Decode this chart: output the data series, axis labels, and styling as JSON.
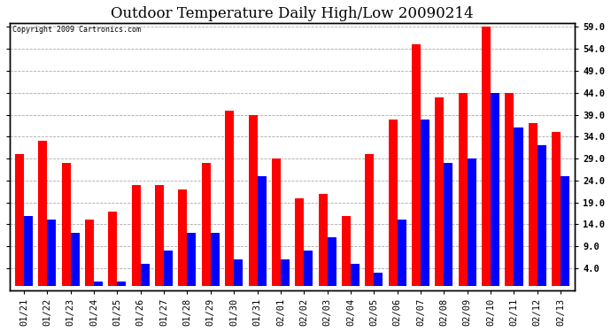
{
  "title": "Outdoor Temperature Daily High/Low 20090214",
  "copyright": "Copyright 2009 Cartronics.com",
  "categories": [
    "01/21",
    "01/22",
    "01/23",
    "01/24",
    "01/25",
    "01/26",
    "01/27",
    "01/28",
    "01/29",
    "01/30",
    "01/31",
    "02/01",
    "02/02",
    "02/03",
    "02/04",
    "02/05",
    "02/06",
    "02/07",
    "02/08",
    "02/09",
    "02/10",
    "02/11",
    "02/12",
    "02/13"
  ],
  "highs": [
    30,
    33,
    28,
    15,
    17,
    23,
    23,
    22,
    28,
    40,
    39,
    29,
    20,
    21,
    16,
    30,
    38,
    55,
    43,
    44,
    59,
    44,
    37,
    35
  ],
  "lows": [
    16,
    15,
    12,
    1,
    1,
    5,
    8,
    12,
    12,
    6,
    25,
    6,
    8,
    11,
    5,
    3,
    15,
    38,
    28,
    29,
    44,
    36,
    32,
    25
  ],
  "high_color": "#FF0000",
  "low_color": "#0000FF",
  "background_color": "#FFFFFF",
  "grid_color": "#AAAAAA",
  "ylim": [
    -1,
    60
  ],
  "yticks": [
    4.0,
    9.0,
    14.0,
    19.0,
    24.0,
    29.0,
    34.0,
    39.0,
    44.0,
    49.0,
    54.0,
    59.0
  ],
  "right_yticks": [
    4.0,
    9.0,
    14.0,
    19.0,
    24.0,
    29.0,
    34.0,
    39.0,
    44.0,
    49.0,
    54.0,
    59.0
  ],
  "bar_width": 0.38,
  "title_fontsize": 12,
  "tick_fontsize": 7.5,
  "figsize": [
    6.9,
    3.75
  ],
  "dpi": 100
}
